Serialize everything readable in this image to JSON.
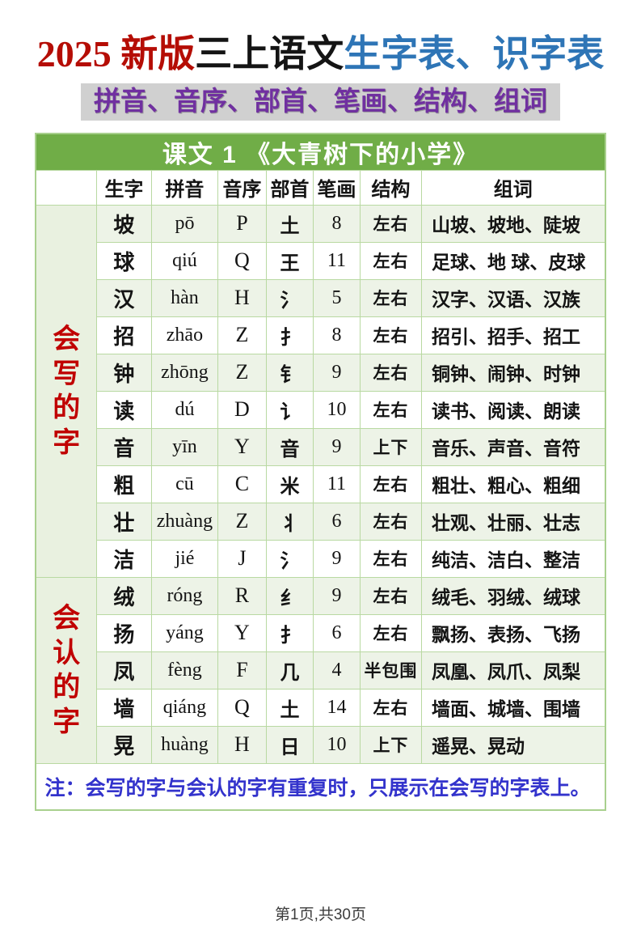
{
  "page": {
    "title": {
      "part1": "2025 新版",
      "part2": "三上语文",
      "part3": "生字表、识字表"
    },
    "subtitle": "拼音、音序、部首、笔画、结构、组词",
    "footer": "第1页,共30页"
  },
  "colors": {
    "title_red": "#b50d05",
    "title_blue": "#2e75b6",
    "subtitle_purple": "#7030a0",
    "subtitle_bg_gray": "#d0d0d0",
    "header_green": "#70ad47",
    "row_alt_green": "#edf3e7",
    "border_green": "#a9d08e",
    "section_label_red": "#c00000",
    "note_blue": "#3333cc"
  },
  "table": {
    "caption": "课文 1 《大青树下的小学》",
    "columns": [
      "生字",
      "拼音",
      "音序",
      "部首",
      "笔画",
      "结构",
      "组词"
    ],
    "sections": [
      {
        "label": "会写的字",
        "row_count": 10
      },
      {
        "label": "会认的字",
        "row_count": 5
      }
    ],
    "rows": [
      {
        "char": "坡",
        "pinyin": "pō",
        "initial": "P",
        "radical": "土",
        "strokes": "8",
        "structure": "左右",
        "words": "山坡、坡地、陡坡"
      },
      {
        "char": "球",
        "pinyin": "qiú",
        "initial": "Q",
        "radical": "王",
        "strokes": "11",
        "structure": "左右",
        "words": "足球、地 球、皮球"
      },
      {
        "char": "汉",
        "pinyin": "hàn",
        "initial": "H",
        "radical": "氵",
        "strokes": "5",
        "structure": "左右",
        "words": "汉字、汉语、汉族"
      },
      {
        "char": "招",
        "pinyin": "zhāo",
        "initial": "Z",
        "radical": "扌",
        "strokes": "8",
        "structure": "左右",
        "words": "招引、招手、招工"
      },
      {
        "char": "钟",
        "pinyin": "zhōng",
        "initial": "Z",
        "radical": "钅",
        "strokes": "9",
        "structure": "左右",
        "words": "铜钟、闹钟、时钟"
      },
      {
        "char": "读",
        "pinyin": "dú",
        "initial": "D",
        "radical": "讠",
        "strokes": "10",
        "structure": "左右",
        "words": "读书、阅读、朗读"
      },
      {
        "char": "音",
        "pinyin": "yīn",
        "initial": "Y",
        "radical": "音",
        "strokes": "9",
        "structure": "上下",
        "words": "音乐、声音、音符"
      },
      {
        "char": "粗",
        "pinyin": "cū",
        "initial": "C",
        "radical": "米",
        "strokes": "11",
        "structure": "左右",
        "words": "粗壮、粗心、粗细"
      },
      {
        "char": "壮",
        "pinyin": "zhuàng",
        "initial": "Z",
        "radical": "丬",
        "strokes": "6",
        "structure": "左右",
        "words": "壮观、壮丽、壮志"
      },
      {
        "char": "洁",
        "pinyin": "jié",
        "initial": "J",
        "radical": "氵",
        "strokes": "9",
        "structure": "左右",
        "words": "纯洁、洁白、整洁"
      },
      {
        "char": "绒",
        "pinyin": "róng",
        "initial": "R",
        "radical": "纟",
        "strokes": "9",
        "structure": "左右",
        "words": "绒毛、羽绒、绒球"
      },
      {
        "char": "扬",
        "pinyin": "yáng",
        "initial": "Y",
        "radical": "扌",
        "strokes": "6",
        "structure": "左右",
        "words": "飘扬、表扬、飞扬"
      },
      {
        "char": "凤",
        "pinyin": "fèng",
        "initial": "F",
        "radical": "几",
        "strokes": "4",
        "structure": "半包围",
        "words": "凤凰、凤爪、凤梨"
      },
      {
        "char": "墙",
        "pinyin": "qiáng",
        "initial": "Q",
        "radical": "土",
        "strokes": "14",
        "structure": "左右",
        "words": "墙面、城墙、围墙"
      },
      {
        "char": "晃",
        "pinyin": "huàng",
        "initial": "H",
        "radical": "日",
        "strokes": "10",
        "structure": "上下",
        "words": "遥晃、晃动"
      }
    ],
    "note": "注：会写的字与会认的字有重复时，只展示在会写的字表上。"
  }
}
